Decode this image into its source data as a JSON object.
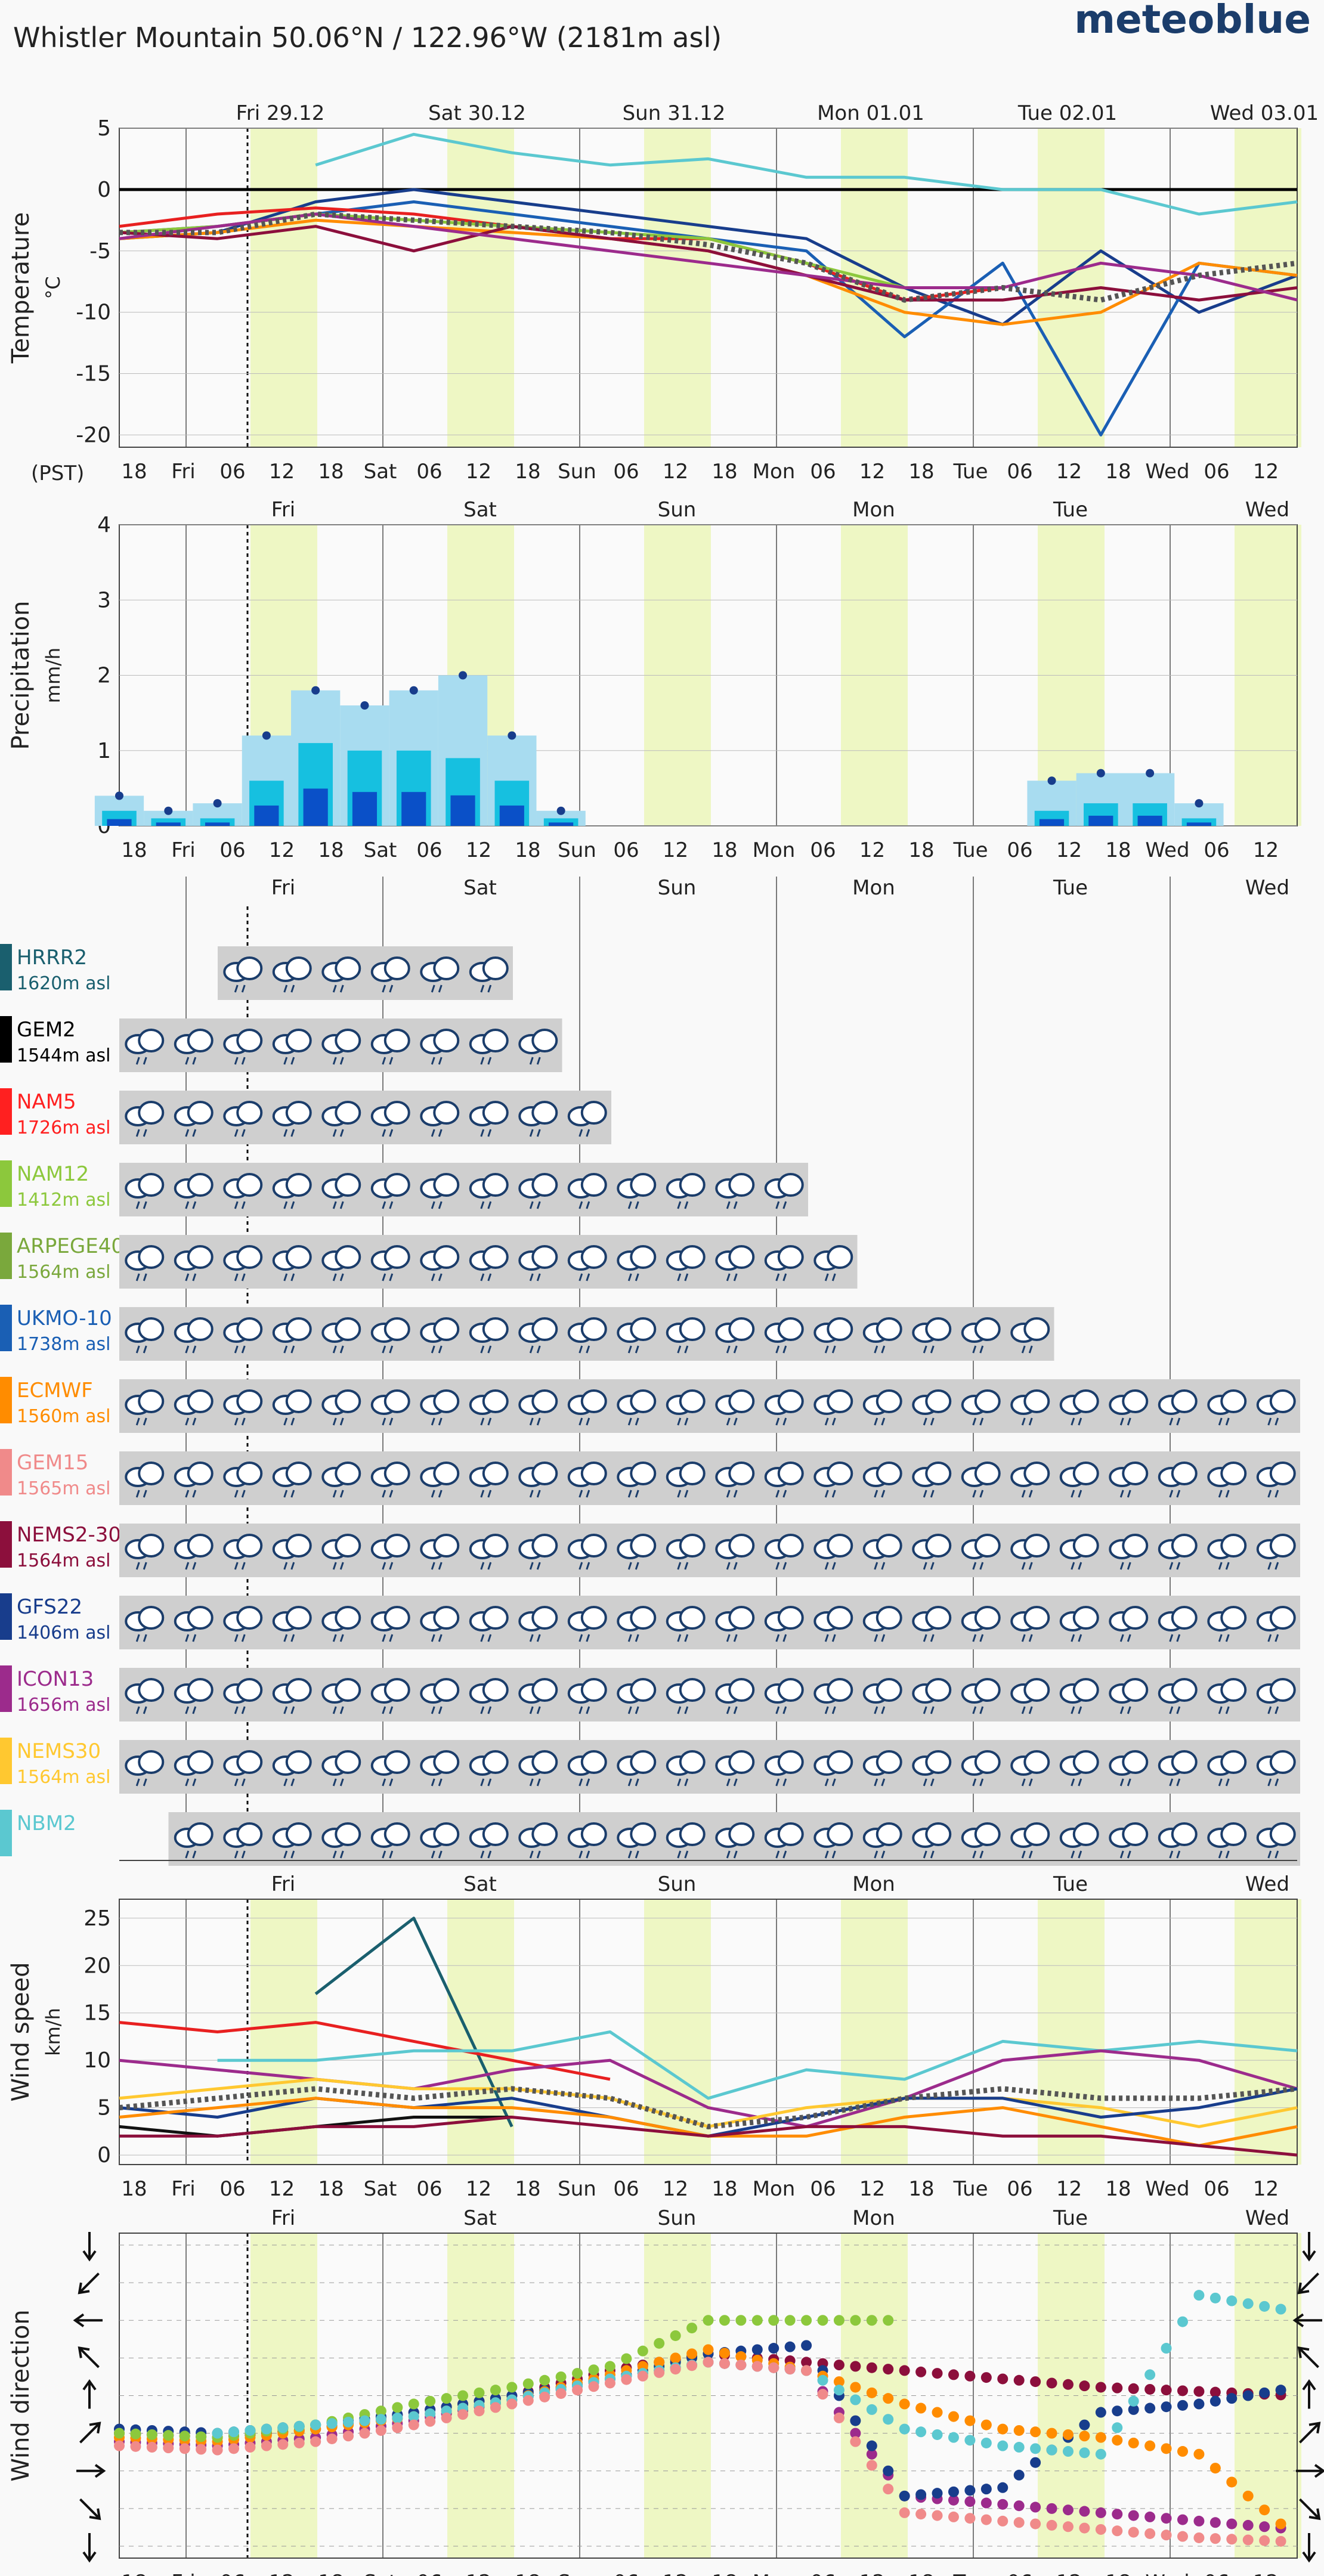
{
  "header": {
    "title": "Whistler Mountain  50.06°N / 122.96°W (2181m asl)",
    "logo": "meteoblue"
  },
  "timezone_label": "(PST)",
  "colors": {
    "day_band": "#eef7c4",
    "grid": "#7a7a7a",
    "bg": "#f9f9f9",
    "ensemble_mean": "#555555"
  },
  "chart_data": [
    {
      "type": "line",
      "name": "temperature",
      "ylabel": "Temperature",
      "yunit": "°C",
      "ylim": [
        -21,
        5
      ],
      "yticks": [
        5,
        0,
        -5,
        -10,
        -15,
        -20
      ],
      "top_dates": [
        "Fri 29.12",
        "Sat 30.12",
        "Sun 31.12",
        "Mon 01.01",
        "Tue 02.01",
        "Wed 03.01"
      ],
      "xtick_labels": [
        "18",
        "Fri",
        "06",
        "12",
        "18",
        "Sat",
        "06",
        "12",
        "18",
        "Sun",
        "06",
        "12",
        "18",
        "Mon",
        "06",
        "12",
        "18",
        "Tue",
        "06",
        "12",
        "18",
        "Wed",
        "06",
        "12"
      ],
      "x_hours": [
        0,
        12,
        24,
        36,
        48,
        60,
        72,
        84,
        96,
        108,
        120,
        132,
        144
      ],
      "series": [
        {
          "name": "NBM2",
          "color": "#5bc8d0",
          "values": [
            null,
            null,
            2,
            4.5,
            3,
            2,
            2.5,
            1,
            1,
            0,
            0,
            -2,
            -1
          ]
        },
        {
          "name": "GFS22",
          "color": "#183d8c",
          "values": [
            -4,
            -3.5,
            -1,
            0,
            -1,
            -2,
            -3,
            -4,
            -8,
            -11,
            -5,
            -10,
            -7
          ]
        },
        {
          "name": "UKMO-10",
          "color": "#1a5fb4",
          "values": [
            -3.5,
            -3,
            -2,
            -1,
            -2,
            -3,
            -4,
            -5,
            -12,
            -6,
            -20,
            -6,
            -7
          ]
        },
        {
          "name": "NAM5",
          "color": "#e82020",
          "values": [
            -3,
            -2,
            -1.5,
            -2,
            -3,
            -4,
            -4,
            -6,
            -9,
            -8,
            null,
            null,
            null
          ]
        },
        {
          "name": "NAM12",
          "color": "#8cc83c",
          "values": [
            -3.5,
            -3,
            -2,
            -2.5,
            -3,
            -3.5,
            -4,
            -6,
            -8,
            null,
            null,
            null,
            null
          ]
        },
        {
          "name": "ECMWF",
          "color": "#ff8c00",
          "values": [
            -4,
            -3.5,
            -2.5,
            -3,
            -3.5,
            -4,
            -5,
            -7,
            -10,
            -11,
            -10,
            -6,
            -7
          ]
        },
        {
          "name": "NEMS2-30",
          "color": "#8c0f3c",
          "values": [
            -3.5,
            -4,
            -3,
            -5,
            -3,
            -4,
            -5,
            -7,
            -9,
            -9,
            -8,
            -9,
            -8
          ]
        },
        {
          "name": "ICON13",
          "color": "#9c2b8c",
          "values": [
            -4,
            -3,
            -2,
            -3,
            -4,
            -5,
            -6,
            -7,
            -8,
            -8,
            -6,
            -7,
            -9
          ]
        },
        {
          "name": "mean",
          "color": "#555555",
          "values": [
            -3.5,
            -3.5,
            -2,
            -2.5,
            -3,
            -3.5,
            -4.5,
            -6,
            -9,
            -8,
            -9,
            -7,
            -6
          ]
        }
      ]
    },
    {
      "type": "bar",
      "name": "precipitation",
      "ylabel": "Precipitation",
      "yunit": "mm/h",
      "ylim": [
        0,
        4
      ],
      "yticks": [
        0,
        1,
        2,
        3,
        4
      ],
      "top_days": [
        "Fri",
        "Sat",
        "Sun",
        "Mon",
        "Tue",
        "Wed"
      ],
      "xtick_labels": [
        "18",
        "Fri",
        "06",
        "12",
        "18",
        "Sat",
        "06",
        "12",
        "18",
        "Sun",
        "06",
        "12",
        "18",
        "Mon",
        "06",
        "12",
        "18",
        "Tue",
        "06",
        "12",
        "18",
        "Wed",
        "06",
        "12"
      ],
      "x_hours": [
        0,
        6,
        12,
        18,
        24,
        30,
        36,
        42,
        48,
        54,
        60,
        66,
        72,
        78,
        84,
        90,
        96,
        102,
        108,
        114,
        120,
        126,
        132,
        138,
        144
      ],
      "values_max": [
        0.4,
        0.2,
        0.3,
        1.2,
        1.8,
        1.6,
        1.8,
        2.0,
        1.2,
        0.2,
        0,
        0,
        0,
        0,
        0,
        0,
        0,
        0,
        0,
        0.6,
        0.7,
        0.7,
        0.3,
        0,
        0
      ],
      "values_mean": [
        0.2,
        0.1,
        0.1,
        0.6,
        1.1,
        1.0,
        1.0,
        0.9,
        0.6,
        0.1,
        0,
        0,
        0,
        0,
        0.05,
        0,
        0,
        0,
        0,
        0.2,
        0.3,
        0.3,
        0.1,
        0,
        0
      ],
      "colors": {
        "light": "#a8dcf0",
        "mid": "#16c0e0",
        "dark": "#0a50c8",
        "deep": "#0a0a80"
      }
    },
    {
      "type": "table",
      "name": "weather_symbols",
      "top_days": [
        "Fri",
        "Sat",
        "Sun",
        "Mon",
        "Tue",
        "Wed"
      ],
      "rows": [
        {
          "model": "HRRR2",
          "elev": "1620m asl",
          "color": "#1a5f6e",
          "from": 2,
          "to": 8
        },
        {
          "model": "GEM2",
          "elev": "1544m asl",
          "color": "#000000",
          "from": 0,
          "to": 9
        },
        {
          "model": "NAM5",
          "elev": "1726m asl",
          "color": "#ff2020",
          "from": 0,
          "to": 10
        },
        {
          "model": "NAM12",
          "elev": "1412m asl",
          "color": "#8cc83c",
          "from": 0,
          "to": 14
        },
        {
          "model": "ARPEGE40",
          "elev": "1564m asl",
          "color": "#7aa83c",
          "from": 0,
          "to": 15
        },
        {
          "model": "UKMO-10",
          "elev": "1738m asl",
          "color": "#1a5fb4",
          "from": 0,
          "to": 19
        },
        {
          "model": "ECMWF",
          "elev": "1560m asl",
          "color": "#ff8c00",
          "from": 0,
          "to": 24
        },
        {
          "model": "GEM15",
          "elev": "1565m asl",
          "color": "#f08a8a",
          "from": 0,
          "to": 24
        },
        {
          "model": "NEMS2-30",
          "elev": "1564m asl",
          "color": "#8c0f3c",
          "from": 0,
          "to": 24
        },
        {
          "model": "GFS22",
          "elev": "1406m asl",
          "color": "#183d8c",
          "from": 0,
          "to": 24
        },
        {
          "model": "ICON13",
          "elev": "1656m asl",
          "color": "#9c2b8c",
          "from": 0,
          "to": 24
        },
        {
          "model": "NEMS30",
          "elev": "1564m asl",
          "color": "#ffc830",
          "from": 0,
          "to": 24
        },
        {
          "model": "NBM2",
          "elev": "",
          "color": "#5bc8d0",
          "from": 1,
          "to": 24
        }
      ]
    },
    {
      "type": "line",
      "name": "wind_speed",
      "ylabel": "Wind speed",
      "yunit": "km/h",
      "ylim": [
        -1,
        27
      ],
      "yticks": [
        0,
        5,
        10,
        15,
        20,
        25
      ],
      "top_days": [
        "Fri",
        "Sat",
        "Sun",
        "Mon",
        "Tue",
        "Wed"
      ],
      "xtick_labels": [
        "18",
        "Fri",
        "06",
        "12",
        "18",
        "Sat",
        "06",
        "12",
        "18",
        "Sun",
        "06",
        "12",
        "18",
        "Mon",
        "06",
        "12",
        "18",
        "Tue",
        "06",
        "12",
        "18",
        "Wed",
        "06",
        "12"
      ],
      "x_hours": [
        0,
        12,
        24,
        36,
        48,
        60,
        72,
        84,
        96,
        108,
        120,
        132,
        144
      ],
      "series": [
        {
          "name": "HRRR2",
          "color": "#1a5f6e",
          "values": [
            null,
            null,
            17,
            25,
            3,
            null,
            null,
            null,
            null,
            null,
            null,
            null,
            null
          ]
        },
        {
          "name": "NAM5",
          "color": "#e82020",
          "values": [
            14,
            13,
            14,
            12,
            10,
            8,
            null,
            null,
            null,
            null,
            null,
            null,
            null
          ]
        },
        {
          "name": "NBM2",
          "color": "#5bc8d0",
          "values": [
            null,
            10,
            10,
            11,
            11,
            13,
            6,
            9,
            8,
            12,
            11,
            12,
            11
          ]
        },
        {
          "name": "ICON13",
          "color": "#9c2b8c",
          "values": [
            10,
            9,
            8,
            7,
            9,
            10,
            5,
            3,
            6,
            10,
            11,
            10,
            7
          ]
        },
        {
          "name": "NEMS30",
          "color": "#ffc830",
          "values": [
            6,
            7,
            8,
            7,
            7,
            6,
            3,
            5,
            6,
            6,
            5,
            3,
            5
          ]
        },
        {
          "name": "GFS22",
          "color": "#183d8c",
          "values": [
            5,
            4,
            6,
            5,
            6,
            4,
            2,
            4,
            6,
            6,
            4,
            5,
            7
          ]
        },
        {
          "name": "ECMWF",
          "color": "#ff8c00",
          "values": [
            4,
            5,
            6,
            5,
            5,
            4,
            2,
            2,
            4,
            5,
            3,
            1,
            3
          ]
        },
        {
          "name": "GEM2",
          "color": "#111111",
          "values": [
            3,
            2,
            3,
            4,
            4,
            null,
            null,
            null,
            null,
            null,
            null,
            null,
            null
          ]
        },
        {
          "name": "NEMS2-30",
          "color": "#8c0f3c",
          "values": [
            2,
            2,
            3,
            3,
            4,
            3,
            2,
            3,
            3,
            2,
            2,
            1,
            0
          ]
        },
        {
          "name": "mean",
          "color": "#555555",
          "values": [
            5,
            6,
            7,
            6,
            7,
            6,
            3,
            4,
            6,
            7,
            6,
            6,
            7
          ]
        }
      ]
    },
    {
      "type": "scatter",
      "name": "wind_direction",
      "ylabel": "Wind direction",
      "top_days": [
        "Fri",
        "Sat",
        "Sun",
        "Mon",
        "Tue",
        "Wed"
      ],
      "xtick_labels": [
        "18",
        "Fri",
        "06",
        "12",
        "18",
        "Sat",
        "06",
        "12",
        "18",
        "Sun",
        "06",
        "12",
        "18",
        "Mon",
        "06",
        "12",
        "18",
        "Tue",
        "06",
        "12",
        "18",
        "Wed",
        "06",
        "12"
      ],
      "directions": [
        "N",
        "NE",
        "E",
        "SE",
        "S",
        "SW",
        "W",
        "NW",
        "N"
      ],
      "x_hours": [
        0,
        12,
        24,
        36,
        48,
        60,
        72,
        84,
        96,
        108,
        120,
        132,
        144
      ],
      "series": [
        {
          "name": "NEMS2-30",
          "color": "#8c0f3c",
          "values": [
            225,
            230,
            220,
            200,
            180,
            150,
            130,
            140,
            150,
            160,
            170,
            175,
            180
          ]
        },
        {
          "name": "ICON13",
          "color": "#9c2b8c",
          "values": [
            235,
            240,
            230,
            210,
            185,
            160,
            140,
            150,
            300,
            310,
            320,
            330,
            340
          ]
        },
        {
          "name": "GFS22",
          "color": "#183d8c",
          "values": [
            220,
            225,
            215,
            200,
            180,
            160,
            130,
            120,
            300,
            290,
            200,
            190,
            170
          ]
        },
        {
          "name": "ECMWF",
          "color": "#ff8c00",
          "values": [
            230,
            235,
            220,
            205,
            185,
            155,
            125,
            150,
            190,
            220,
            230,
            250,
            350
          ]
        },
        {
          "name": "NAM12",
          "color": "#8cc83c",
          "values": [
            225,
            230,
            215,
            190,
            170,
            145,
            90,
            90,
            90,
            null,
            null,
            null,
            null
          ]
        },
        {
          "name": "NBM2",
          "color": "#5bc8d0",
          "values": [
            null,
            225,
            215,
            205,
            185,
            160,
            140,
            150,
            220,
            240,
            250,
            60,
            80
          ]
        },
        {
          "name": "GEM15",
          "color": "#f08a8a",
          "values": [
            240,
            245,
            235,
            215,
            190,
            165,
            140,
            150,
            320,
            330,
            340,
            350,
            355
          ]
        }
      ]
    }
  ]
}
